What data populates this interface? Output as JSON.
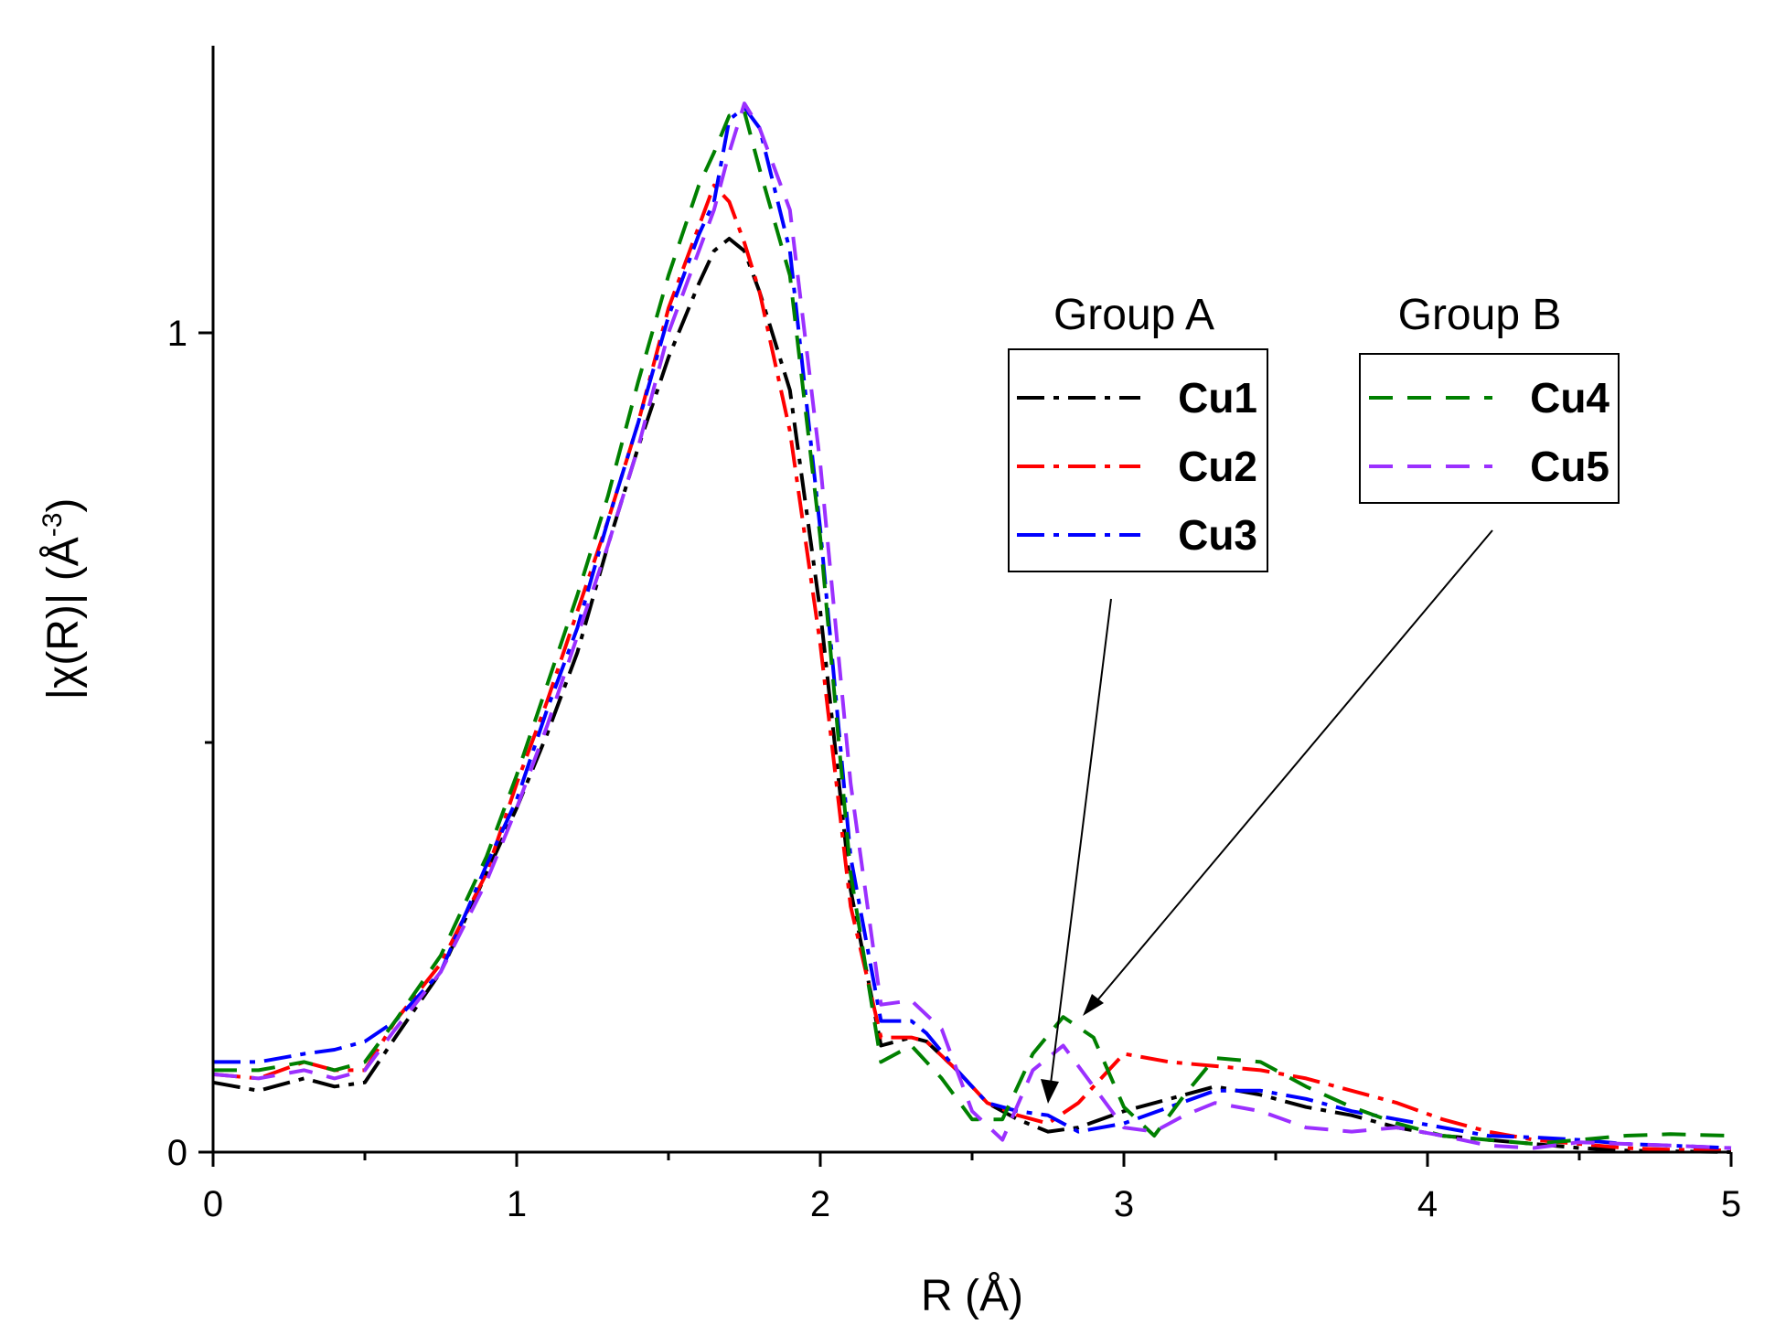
{
  "chart_data": {
    "type": "line",
    "title": "",
    "xlabel": "R (Å)",
    "ylabel": "|χ(R)| (Å",
    "ylabel_sup": "-3",
    "ylabel_close": ")",
    "xlim": [
      0,
      5
    ],
    "ylim": [
      0,
      1.3
    ],
    "x_ticks": [
      0,
      1,
      2,
      3,
      4,
      5
    ],
    "x_tick_labels": [
      "0",
      "1",
      "2",
      "3",
      "4",
      "5"
    ],
    "y_ticks": [
      0,
      1
    ],
    "y_tick_labels": [
      "0",
      "1"
    ],
    "y_minor_ticks": [
      0.5
    ],
    "grid": false,
    "legend_groups": [
      {
        "title": "Group A",
        "entries": [
          "Cu1",
          "Cu2",
          "Cu3"
        ]
      },
      {
        "title": "Group B",
        "entries": [
          "Cu4",
          "Cu5"
        ]
      }
    ],
    "series": [
      {
        "name": "Cu1",
        "color": "#000000",
        "dash": "dashdot",
        "x": [
          0,
          0.15,
          0.3,
          0.4,
          0.5,
          0.6,
          0.75,
          0.9,
          1.0,
          1.1,
          1.2,
          1.3,
          1.4,
          1.5,
          1.6,
          1.65,
          1.7,
          1.75,
          1.8,
          1.9,
          2.0,
          2.1,
          2.2,
          2.3,
          2.35,
          2.45,
          2.55,
          2.65,
          2.75,
          2.85,
          3.0,
          3.15,
          3.3,
          3.45,
          3.6,
          3.75,
          3.9,
          4.05,
          4.2,
          4.35,
          4.5,
          4.65,
          4.8,
          5.0
        ],
        "y": [
          0.085,
          0.075,
          0.09,
          0.08,
          0.085,
          0.14,
          0.22,
          0.34,
          0.42,
          0.51,
          0.61,
          0.74,
          0.86,
          0.97,
          1.06,
          1.1,
          1.115,
          1.1,
          1.05,
          0.93,
          0.66,
          0.32,
          0.13,
          0.14,
          0.135,
          0.1,
          0.06,
          0.04,
          0.025,
          0.03,
          0.05,
          0.065,
          0.08,
          0.07,
          0.055,
          0.045,
          0.03,
          0.02,
          0.015,
          0.01,
          0.005,
          0.002,
          0.001,
          0.0
        ]
      },
      {
        "name": "Cu2",
        "color": "#ff0000",
        "dash": "dashdot",
        "x": [
          0,
          0.15,
          0.3,
          0.4,
          0.5,
          0.6,
          0.75,
          0.9,
          1.0,
          1.1,
          1.2,
          1.3,
          1.4,
          1.5,
          1.6,
          1.65,
          1.7,
          1.75,
          1.8,
          1.9,
          2.0,
          2.1,
          2.2,
          2.3,
          2.35,
          2.45,
          2.55,
          2.65,
          2.75,
          2.85,
          3.0,
          3.15,
          3.3,
          3.45,
          3.6,
          3.75,
          3.9,
          4.05,
          4.2,
          4.35,
          4.5,
          4.65,
          4.8,
          5.0
        ],
        "y": [
          0.095,
          0.09,
          0.11,
          0.1,
          0.1,
          0.16,
          0.23,
          0.34,
          0.45,
          0.55,
          0.66,
          0.77,
          0.89,
          1.03,
          1.13,
          1.18,
          1.16,
          1.11,
          1.05,
          0.88,
          0.62,
          0.3,
          0.14,
          0.14,
          0.135,
          0.1,
          0.06,
          0.045,
          0.035,
          0.06,
          0.12,
          0.11,
          0.105,
          0.1,
          0.09,
          0.075,
          0.06,
          0.04,
          0.025,
          0.015,
          0.01,
          0.005,
          0.003,
          0.002
        ]
      },
      {
        "name": "Cu3",
        "color": "#0000ff",
        "dash": "dashdot",
        "x": [
          0,
          0.15,
          0.3,
          0.4,
          0.5,
          0.6,
          0.75,
          0.9,
          1.0,
          1.1,
          1.2,
          1.3,
          1.4,
          1.5,
          1.6,
          1.65,
          1.7,
          1.75,
          1.8,
          1.9,
          2.0,
          2.1,
          2.2,
          2.3,
          2.35,
          2.45,
          2.55,
          2.65,
          2.75,
          2.85,
          3.0,
          3.15,
          3.3,
          3.45,
          3.6,
          3.75,
          3.9,
          4.05,
          4.2,
          4.35,
          4.5,
          4.65,
          4.8,
          5.0
        ],
        "y": [
          0.11,
          0.11,
          0.12,
          0.125,
          0.135,
          0.16,
          0.22,
          0.35,
          0.43,
          0.54,
          0.64,
          0.77,
          0.89,
          1.02,
          1.12,
          1.16,
          1.26,
          1.275,
          1.25,
          1.1,
          0.76,
          0.36,
          0.16,
          0.16,
          0.145,
          0.1,
          0.06,
          0.05,
          0.045,
          0.025,
          0.035,
          0.055,
          0.075,
          0.075,
          0.065,
          0.05,
          0.04,
          0.03,
          0.02,
          0.018,
          0.015,
          0.01,
          0.008,
          0.005
        ]
      },
      {
        "name": "Cu4",
        "color": "#008000",
        "dash": "dash",
        "x": [
          0,
          0.15,
          0.3,
          0.4,
          0.5,
          0.6,
          0.75,
          0.9,
          1.0,
          1.1,
          1.2,
          1.3,
          1.4,
          1.5,
          1.6,
          1.65,
          1.7,
          1.75,
          1.8,
          1.9,
          2.0,
          2.1,
          2.2,
          2.3,
          2.4,
          2.5,
          2.6,
          2.7,
          2.8,
          2.9,
          3.0,
          3.1,
          3.2,
          3.3,
          3.45,
          3.6,
          3.75,
          3.9,
          4.05,
          4.2,
          4.35,
          4.5,
          4.65,
          4.8,
          5.0
        ],
        "y": [
          0.1,
          0.1,
          0.11,
          0.1,
          0.11,
          0.16,
          0.24,
          0.36,
          0.46,
          0.57,
          0.68,
          0.8,
          0.94,
          1.07,
          1.18,
          1.22,
          1.265,
          1.27,
          1.2,
          1.07,
          0.75,
          0.34,
          0.11,
          0.13,
          0.09,
          0.04,
          0.04,
          0.12,
          0.165,
          0.14,
          0.055,
          0.02,
          0.07,
          0.115,
          0.11,
          0.08,
          0.055,
          0.035,
          0.02,
          0.015,
          0.01,
          0.015,
          0.02,
          0.022,
          0.02
        ]
      },
      {
        "name": "Cu5",
        "color": "#9b30ff",
        "dash": "dash",
        "x": [
          0,
          0.15,
          0.3,
          0.4,
          0.5,
          0.6,
          0.75,
          0.9,
          1.0,
          1.1,
          1.2,
          1.3,
          1.4,
          1.5,
          1.6,
          1.65,
          1.7,
          1.75,
          1.8,
          1.9,
          2.0,
          2.1,
          2.2,
          2.3,
          2.4,
          2.5,
          2.6,
          2.7,
          2.8,
          2.9,
          3.0,
          3.1,
          3.2,
          3.3,
          3.45,
          3.6,
          3.75,
          3.9,
          4.05,
          4.2,
          4.35,
          4.5,
          4.65,
          4.8,
          5.0
        ],
        "y": [
          0.095,
          0.09,
          0.1,
          0.09,
          0.1,
          0.15,
          0.22,
          0.33,
          0.42,
          0.52,
          0.63,
          0.74,
          0.86,
          1.0,
          1.1,
          1.15,
          1.22,
          1.28,
          1.25,
          1.15,
          0.84,
          0.45,
          0.18,
          0.185,
          0.15,
          0.05,
          0.015,
          0.1,
          0.13,
          0.08,
          0.03,
          0.025,
          0.045,
          0.06,
          0.05,
          0.03,
          0.025,
          0.03,
          0.02,
          0.008,
          0.005,
          0.012,
          0.01,
          0.008,
          0.005
        ]
      }
    ]
  }
}
